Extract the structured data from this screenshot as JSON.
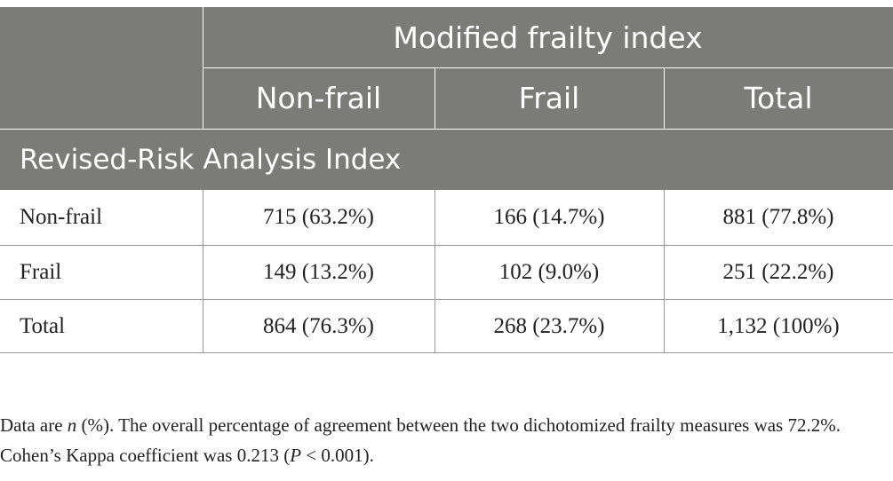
{
  "table": {
    "column_group_header": "Modified frailty index",
    "columns": [
      "Non-frail",
      "Frail",
      "Total"
    ],
    "row_group_header": "Revised-Risk Analysis Index",
    "rows": [
      {
        "label": "Non-frail",
        "values": [
          "715 (63.2%)",
          "166 (14.7%)",
          "881 (77.8%)"
        ]
      },
      {
        "label": "Frail",
        "values": [
          "149 (13.2%)",
          "102 (9.0%)",
          "251 (22.2%)"
        ]
      },
      {
        "label": "Total",
        "values": [
          "864 (76.3%)",
          "268 (23.7%)",
          "1,132 (100%)"
        ]
      }
    ]
  },
  "footnote": {
    "prefix": "Data are ",
    "n_symbol": "n",
    "middle": " (%). The overall percentage of agreement between the two dichotomized frailty measures was 72.2%. Cohen’s Kappa coefficient was 0.213 (",
    "p_symbol": "P",
    "suffix": " < 0.001)."
  }
}
